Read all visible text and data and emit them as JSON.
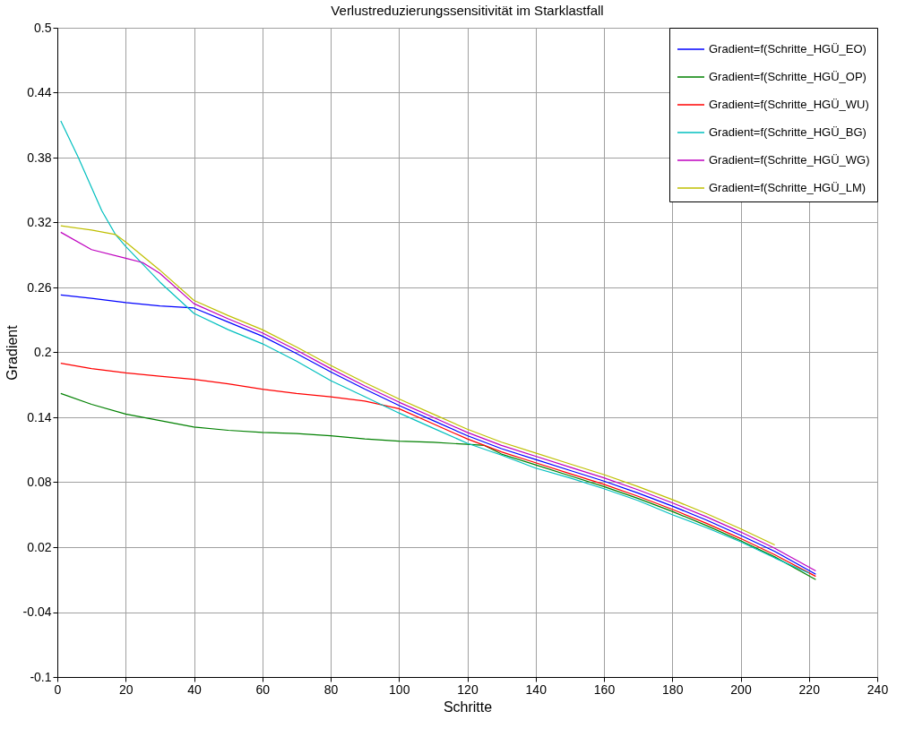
{
  "chart_data": {
    "type": "line",
    "title": "Verlustreduzierungssensitivität im Starklastfall",
    "xlabel": "Schritte",
    "ylabel": "Gradient",
    "xlim": [
      0,
      240
    ],
    "xticks": [
      0,
      20,
      40,
      60,
      80,
      100,
      120,
      140,
      160,
      180,
      200,
      220,
      240
    ],
    "ylim": [
      -0.1,
      0.5
    ],
    "yticks": [
      -0.1,
      -0.04,
      0.02,
      0.08,
      0.14,
      0.2,
      0.26,
      0.32,
      0.38,
      0.44,
      0.5
    ],
    "grid": true,
    "legend": "top right",
    "line_style": "solid",
    "marker": "none",
    "series": [
      {
        "name": "Gradient=f(Schritte_HGÜ_EO)",
        "color": "#0000ff",
        "x": [
          1,
          10,
          20,
          30,
          40,
          50,
          60,
          70,
          80,
          90,
          100,
          110,
          120,
          130,
          140,
          150,
          160,
          170,
          180,
          190,
          200,
          210,
          222
        ],
        "values": [
          0.253,
          0.25,
          0.246,
          0.243,
          0.241,
          0.228,
          0.215,
          0.199,
          0.182,
          0.166,
          0.151,
          0.137,
          0.123,
          0.111,
          0.101,
          0.091,
          0.081,
          0.07,
          0.058,
          0.045,
          0.031,
          0.016,
          -0.005
        ]
      },
      {
        "name": "Gradient=f(Schritte_HGÜ_OP)",
        "color": "#008000",
        "x": [
          1,
          10,
          20,
          30,
          40,
          50,
          60,
          70,
          80,
          90,
          100,
          110,
          120,
          125,
          130,
          140,
          150,
          160,
          170,
          180,
          190,
          200,
          210,
          222
        ],
        "values": [
          0.162,
          0.152,
          0.143,
          0.137,
          0.131,
          0.128,
          0.126,
          0.125,
          0.123,
          0.12,
          0.118,
          0.117,
          0.115,
          0.114,
          0.106,
          0.096,
          0.086,
          0.076,
          0.065,
          0.053,
          0.04,
          0.026,
          0.011,
          -0.01
        ]
      },
      {
        "name": "Gradient=f(Schritte_HGÜ_WU)",
        "color": "#ff0000",
        "x": [
          1,
          10,
          20,
          30,
          40,
          50,
          60,
          70,
          80,
          90,
          100,
          110,
          120,
          130,
          140,
          150,
          160,
          170,
          180,
          190,
          200,
          210,
          222
        ],
        "values": [
          0.19,
          0.185,
          0.181,
          0.178,
          0.175,
          0.171,
          0.166,
          0.162,
          0.159,
          0.155,
          0.148,
          0.134,
          0.12,
          0.108,
          0.098,
          0.088,
          0.078,
          0.067,
          0.055,
          0.042,
          0.028,
          0.013,
          -0.007
        ]
      },
      {
        "name": "Gradient=f(Schritte_HGÜ_BG)",
        "color": "#00bfbf",
        "x": [
          1,
          6,
          13,
          17,
          20,
          30,
          40,
          50,
          60,
          70,
          80,
          90,
          100,
          110,
          120,
          130,
          140,
          150,
          160,
          170,
          180,
          190,
          200,
          210,
          220
        ],
        "values": [
          0.414,
          0.381,
          0.331,
          0.309,
          0.298,
          0.265,
          0.236,
          0.221,
          0.208,
          0.192,
          0.174,
          0.159,
          0.144,
          0.13,
          0.116,
          0.105,
          0.093,
          0.084,
          0.074,
          0.063,
          0.05,
          0.038,
          0.025,
          0.01,
          -0.004
        ]
      },
      {
        "name": "Gradient=f(Schritte_HGÜ_WG)",
        "color": "#bf00bf",
        "x": [
          1,
          10,
          20,
          25,
          30,
          40,
          50,
          60,
          70,
          80,
          90,
          100,
          110,
          120,
          130,
          140,
          150,
          160,
          170,
          180,
          190,
          200,
          210,
          222
        ],
        "values": [
          0.311,
          0.295,
          0.287,
          0.283,
          0.273,
          0.245,
          0.231,
          0.218,
          0.202,
          0.185,
          0.169,
          0.154,
          0.14,
          0.126,
          0.114,
          0.104,
          0.094,
          0.084,
          0.073,
          0.061,
          0.048,
          0.034,
          0.019,
          -0.002
        ]
      },
      {
        "name": "Gradient=f(Schritte_HGÜ_LM)",
        "color": "#bfbf00",
        "x": [
          1,
          10,
          17,
          20,
          30,
          40,
          50,
          60,
          70,
          80,
          90,
          100,
          110,
          120,
          130,
          140,
          150,
          160,
          170,
          180,
          190,
          200,
          210
        ],
        "values": [
          0.317,
          0.313,
          0.309,
          0.302,
          0.276,
          0.248,
          0.234,
          0.221,
          0.205,
          0.188,
          0.172,
          0.157,
          0.143,
          0.129,
          0.117,
          0.107,
          0.097,
          0.087,
          0.076,
          0.064,
          0.051,
          0.037,
          0.022
        ]
      }
    ]
  }
}
